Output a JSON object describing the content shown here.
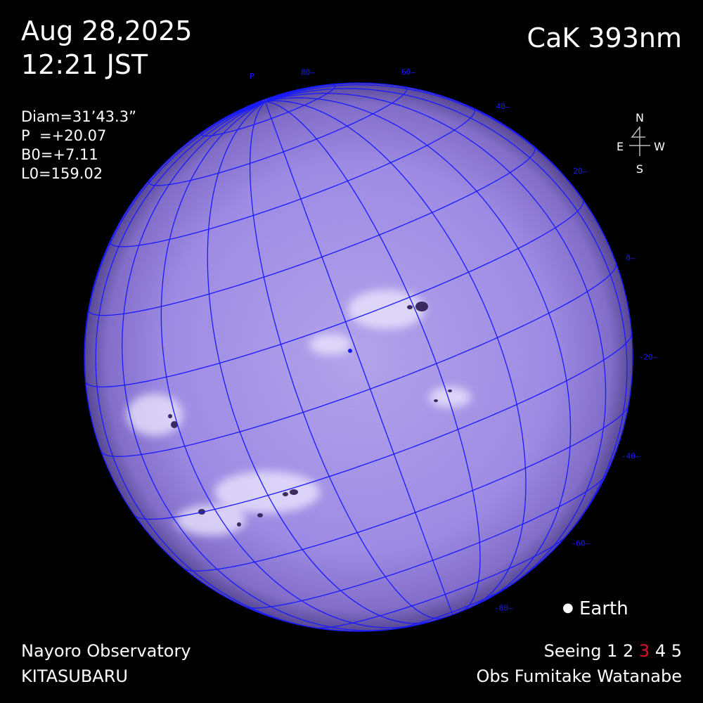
{
  "header": {
    "date": "Aug 28,2025",
    "time": "12:21 JST",
    "band": "CaK 393nm"
  },
  "params": {
    "diam": "Diam=31’43.3”",
    "p": "P  =+20.07",
    "b0": "B0=+7.11",
    "l0": "L0=159.02"
  },
  "solar_angles": {
    "P": 20.07,
    "B0": 7.11
  },
  "compass": {
    "n": "N",
    "s": "S",
    "e": "E",
    "w": "W"
  },
  "grid": {
    "pole_label": "P",
    "lat_labels": [
      "80",
      "60",
      "40",
      "20",
      "0",
      "-20",
      "-40",
      "-60",
      "-80"
    ],
    "color": "#1a1aff"
  },
  "disk_color": "#9a86e6",
  "earth": {
    "label": "Earth"
  },
  "footer": {
    "observatory": "Nayoro Observatory",
    "site": "KITASUBARU",
    "seeing_label": "Seeing",
    "seeing_levels": [
      "1",
      "2",
      "3",
      "4",
      "5"
    ],
    "seeing_selected": "3",
    "observer": "Obs Fumitake Watanabe"
  }
}
